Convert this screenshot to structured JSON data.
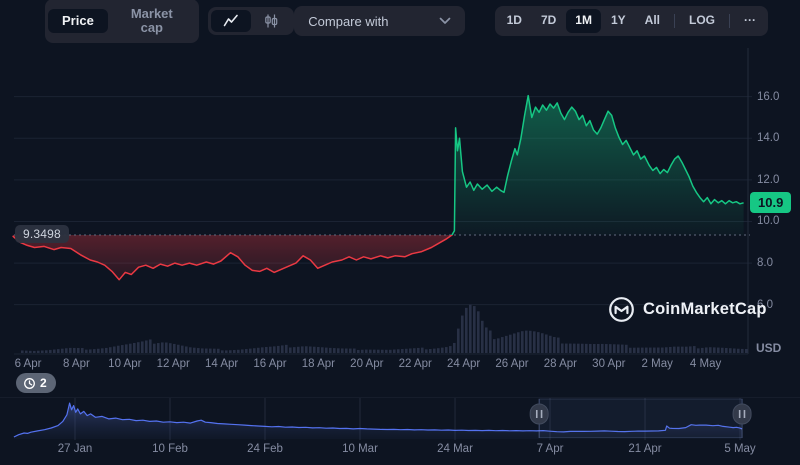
{
  "toolbar": {
    "price_label": "Price",
    "market_cap_label": "Market cap",
    "chart_types": [
      "line",
      "candlestick"
    ],
    "active_chart_type": "line",
    "compare_label": "Compare with",
    "ranges": [
      "1D",
      "7D",
      "1M",
      "1Y",
      "All"
    ],
    "active_range": "1M",
    "log_label": "LOG",
    "more_label": "···"
  },
  "chart": {
    "baseline_label": "9.3498",
    "current_price_label": "10.9",
    "usd_label": "USD"
  },
  "watermark": {
    "text": "CoinMarketCap"
  },
  "history_badge": {
    "count": "2"
  },
  "colors": {
    "up": "#16c784",
    "down": "#ea3943",
    "navigator_line": "#5472f0",
    "grid": "#1b2333",
    "volume": "#2b3349"
  },
  "chart_data": {
    "type": "line",
    "unit": "USD",
    "baseline": 9.3498,
    "current_price": 10.9,
    "ylim": [
      5.6,
      16.6
    ],
    "y_ticks": [
      {
        "label": "16.0",
        "value": 16.0
      },
      {
        "label": "14.0",
        "value": 14.0
      },
      {
        "label": "12.0",
        "value": 12.0
      },
      {
        "label": "10.0",
        "value": 10.0
      },
      {
        "label": "8.0",
        "value": 8.0
      },
      {
        "label": "6.0",
        "value": 6.0
      }
    ],
    "x_ticks": [
      {
        "label": "6 Apr",
        "day": 0
      },
      {
        "label": "8 Apr",
        "day": 2
      },
      {
        "label": "10 Apr",
        "day": 4
      },
      {
        "label": "12 Apr",
        "day": 6
      },
      {
        "label": "14 Apr",
        "day": 8
      },
      {
        "label": "16 Apr",
        "day": 10
      },
      {
        "label": "18 Apr",
        "day": 12
      },
      {
        "label": "20 Apr",
        "day": 14
      },
      {
        "label": "22 Apr",
        "day": 16
      },
      {
        "label": "24 Apr",
        "day": 18
      },
      {
        "label": "26 Apr",
        "day": 20
      },
      {
        "label": "28 Apr",
        "day": 22
      },
      {
        "label": "30 Apr",
        "day": 24
      },
      {
        "label": "2 May",
        "day": 26
      },
      {
        "label": "4 May",
        "day": 28
      }
    ],
    "points": [
      [
        -0.3,
        9.3
      ],
      [
        0,
        9.0
      ],
      [
        0.3,
        8.85
      ],
      [
        0.6,
        8.75
      ],
      [
        1,
        8.8
      ],
      [
        1.4,
        8.65
      ],
      [
        1.7,
        8.75
      ],
      [
        2.1,
        8.7
      ],
      [
        2.5,
        8.4
      ],
      [
        2.9,
        8.15
      ],
      [
        3.2,
        8.05
      ],
      [
        3.5,
        7.9
      ],
      [
        3.8,
        7.6
      ],
      [
        4.1,
        7.2
      ],
      [
        4.35,
        7.55
      ],
      [
        4.6,
        7.45
      ],
      [
        4.9,
        7.8
      ],
      [
        5.2,
        7.9
      ],
      [
        5.5,
        7.75
      ],
      [
        5.8,
        7.95
      ],
      [
        6.1,
        7.85
      ],
      [
        6.4,
        8.0
      ],
      [
        6.7,
        7.9
      ],
      [
        7.0,
        8.0
      ],
      [
        7.3,
        7.9
      ],
      [
        7.7,
        8.05
      ],
      [
        8.0,
        7.95
      ],
      [
        8.3,
        8.1
      ],
      [
        8.7,
        8.5
      ],
      [
        9.0,
        8.3
      ],
      [
        9.3,
        7.9
      ],
      [
        9.6,
        7.65
      ],
      [
        9.9,
        7.6
      ],
      [
        10.2,
        7.75
      ],
      [
        10.5,
        7.55
      ],
      [
        10.8,
        7.7
      ],
      [
        11.1,
        7.85
      ],
      [
        11.4,
        8.0
      ],
      [
        11.7,
        8.35
      ],
      [
        12.0,
        8.15
      ],
      [
        12.3,
        7.75
      ],
      [
        12.6,
        7.9
      ],
      [
        12.9,
        8.05
      ],
      [
        13.3,
        8.15
      ],
      [
        13.6,
        8.3
      ],
      [
        13.9,
        8.15
      ],
      [
        14.2,
        8.3
      ],
      [
        14.5,
        8.2
      ],
      [
        14.9,
        8.35
      ],
      [
        15.2,
        8.25
      ],
      [
        15.5,
        8.35
      ],
      [
        15.9,
        8.3
      ],
      [
        16.2,
        8.45
      ],
      [
        16.6,
        8.55
      ],
      [
        17.0,
        8.75
      ],
      [
        17.3,
        8.95
      ],
      [
        17.6,
        9.15
      ],
      [
        17.85,
        9.35
      ],
      [
        17.95,
        9.55
      ],
      [
        18.0,
        14.5
      ],
      [
        18.08,
        13.4
      ],
      [
        18.16,
        14.0
      ],
      [
        18.28,
        12.4
      ],
      [
        18.45,
        11.65
      ],
      [
        18.6,
        11.9
      ],
      [
        18.75,
        11.5
      ],
      [
        18.9,
        11.8
      ],
      [
        19.1,
        11.55
      ],
      [
        19.3,
        11.75
      ],
      [
        19.5,
        11.45
      ],
      [
        19.7,
        11.65
      ],
      [
        19.85,
        11.5
      ],
      [
        20.0,
        11.4
      ],
      [
        20.15,
        12.2
      ],
      [
        20.3,
        12.9
      ],
      [
        20.45,
        13.5
      ],
      [
        20.55,
        13.2
      ],
      [
        20.7,
        14.0
      ],
      [
        20.85,
        15.1
      ],
      [
        21.0,
        16.05
      ],
      [
        21.15,
        15.0
      ],
      [
        21.3,
        15.5
      ],
      [
        21.45,
        15.25
      ],
      [
        21.6,
        15.6
      ],
      [
        21.75,
        15.35
      ],
      [
        21.9,
        15.65
      ],
      [
        22.05,
        15.45
      ],
      [
        22.2,
        15.7
      ],
      [
        22.35,
        15.2
      ],
      [
        22.5,
        14.9
      ],
      [
        22.65,
        15.25
      ],
      [
        22.8,
        15.5
      ],
      [
        22.95,
        15.3
      ],
      [
        23.1,
        14.9
      ],
      [
        23.25,
        15.1
      ],
      [
        23.4,
        14.6
      ],
      [
        23.55,
        14.85
      ],
      [
        23.7,
        14.4
      ],
      [
        23.85,
        14.2
      ],
      [
        24.0,
        14.5
      ],
      [
        24.15,
        14.9
      ],
      [
        24.3,
        15.3
      ],
      [
        24.45,
        15.1
      ],
      [
        24.6,
        14.5
      ],
      [
        24.75,
        14.05
      ],
      [
        24.9,
        13.7
      ],
      [
        25.05,
        13.9
      ],
      [
        25.2,
        13.55
      ],
      [
        25.35,
        13.2
      ],
      [
        25.5,
        13.4
      ],
      [
        25.65,
        13.0
      ],
      [
        25.8,
        13.15
      ],
      [
        26.0,
        12.7
      ],
      [
        26.15,
        12.45
      ],
      [
        26.3,
        12.6
      ],
      [
        26.45,
        12.3
      ],
      [
        26.6,
        12.5
      ],
      [
        26.75,
        12.35
      ],
      [
        26.9,
        12.7
      ],
      [
        27.05,
        13.0
      ],
      [
        27.2,
        13.15
      ],
      [
        27.35,
        12.85
      ],
      [
        27.5,
        12.5
      ],
      [
        27.65,
        12.15
      ],
      [
        27.8,
        11.7
      ],
      [
        27.95,
        11.4
      ],
      [
        28.1,
        11.15
      ],
      [
        28.25,
        10.95
      ],
      [
        28.4,
        11.15
      ],
      [
        28.55,
        10.85
      ],
      [
        28.7,
        11.05
      ],
      [
        28.85,
        10.9
      ],
      [
        29.0,
        11.0
      ],
      [
        29.15,
        10.85
      ],
      [
        29.3,
        11.0
      ],
      [
        29.45,
        10.9
      ],
      [
        29.6,
        10.95
      ],
      [
        29.75,
        10.85
      ],
      [
        29.9,
        10.9
      ]
    ],
    "volume_relative": [
      [
        0,
        0.07
      ],
      [
        0.5,
        0.05
      ],
      [
        1,
        0.06
      ],
      [
        1.5,
        0.08
      ],
      [
        2,
        0.1
      ],
      [
        2.5,
        0.09
      ],
      [
        3,
        0.1
      ],
      [
        3.5,
        0.12
      ],
      [
        4,
        0.16
      ],
      [
        4.5,
        0.19
      ],
      [
        5,
        0.22
      ],
      [
        5.5,
        0.26
      ],
      [
        5.9,
        0.28
      ],
      [
        6.3,
        0.22
      ],
      [
        6.7,
        0.16
      ],
      [
        7,
        0.12
      ],
      [
        7.5,
        0.09
      ],
      [
        8,
        0.08
      ],
      [
        8.5,
        0.07
      ],
      [
        9,
        0.08
      ],
      [
        9.5,
        0.1
      ],
      [
        10,
        0.12
      ],
      [
        10.5,
        0.13
      ],
      [
        11,
        0.15
      ],
      [
        11.7,
        0.17
      ],
      [
        12.2,
        0.14
      ],
      [
        12.7,
        0.11
      ],
      [
        13.2,
        0.09
      ],
      [
        13.7,
        0.08
      ],
      [
        14.2,
        0.09
      ],
      [
        14.7,
        0.08
      ],
      [
        15.2,
        0.07
      ],
      [
        15.7,
        0.08
      ],
      [
        16.2,
        0.09
      ],
      [
        16.7,
        0.1
      ],
      [
        17.2,
        0.12
      ],
      [
        17.7,
        0.15
      ],
      [
        17.95,
        0.25
      ],
      [
        18.1,
        0.65
      ],
      [
        18.3,
        0.9
      ],
      [
        18.5,
        1.0
      ],
      [
        18.7,
        0.95
      ],
      [
        18.9,
        0.8
      ],
      [
        19.1,
        0.55
      ],
      [
        19.3,
        0.42
      ],
      [
        19.6,
        0.38
      ],
      [
        19.9,
        0.42
      ],
      [
        20.2,
        0.45
      ],
      [
        20.5,
        0.48
      ],
      [
        20.8,
        0.5
      ],
      [
        21.1,
        0.47
      ],
      [
        21.4,
        0.42
      ],
      [
        21.7,
        0.36
      ],
      [
        22,
        0.3
      ],
      [
        22.4,
        0.26
      ],
      [
        22.8,
        0.24
      ],
      [
        23.2,
        0.22
      ],
      [
        23.6,
        0.2
      ],
      [
        24,
        0.19
      ],
      [
        24.5,
        0.17
      ],
      [
        25,
        0.15
      ],
      [
        25.5,
        0.14
      ],
      [
        26,
        0.13
      ],
      [
        26.5,
        0.12
      ],
      [
        27,
        0.13
      ],
      [
        27.5,
        0.12
      ],
      [
        28,
        0.13
      ],
      [
        28.4,
        0.15
      ],
      [
        28.8,
        0.13
      ],
      [
        29.2,
        0.11
      ],
      [
        29.6,
        0.09
      ],
      [
        29.9,
        0.08
      ]
    ],
    "navigator": {
      "ticks": [
        {
          "label": "27 Jan",
          "day": 9
        },
        {
          "label": "10 Feb",
          "day": 23
        },
        {
          "label": "24 Feb",
          "day": 37
        },
        {
          "label": "10 Mar",
          "day": 51
        },
        {
          "label": "24 Mar",
          "day": 65
        },
        {
          "label": "7 Apr",
          "day": 79
        },
        {
          "label": "21 Apr",
          "day": 93
        },
        {
          "label": "5 May",
          "day": 107
        }
      ],
      "selected_window_days": [
        77.4,
        107.3
      ],
      "points": [
        [
          0,
          1.2
        ],
        [
          0.7,
          4
        ],
        [
          1.5,
          6
        ],
        [
          2,
          5.5
        ],
        [
          2.5,
          7
        ],
        [
          3.5,
          8.5
        ],
        [
          4.5,
          10
        ],
        [
          5.5,
          12
        ],
        [
          6.5,
          15
        ],
        [
          7.2,
          20
        ],
        [
          7.8,
          28
        ],
        [
          8.2,
          42
        ],
        [
          8.5,
          34
        ],
        [
          8.8,
          39
        ],
        [
          9.1,
          31
        ],
        [
          9.4,
          35
        ],
        [
          9.8,
          29
        ],
        [
          10.3,
          32
        ],
        [
          10.8,
          27
        ],
        [
          11.3,
          29
        ],
        [
          12,
          25
        ],
        [
          13,
          26
        ],
        [
          14,
          23
        ],
        [
          15,
          24
        ],
        [
          16,
          22
        ],
        [
          17,
          22.5
        ],
        [
          18,
          21
        ],
        [
          19,
          21.5
        ],
        [
          20,
          20
        ],
        [
          21,
          20.5
        ],
        [
          22,
          19
        ],
        [
          23,
          19.5
        ],
        [
          24,
          18.5
        ],
        [
          25,
          19
        ],
        [
          26,
          18
        ],
        [
          27,
          20.5
        ],
        [
          27.6,
          21.5
        ],
        [
          28.2,
          19
        ],
        [
          29,
          18.5
        ],
        [
          30,
          17.5
        ],
        [
          31,
          17
        ],
        [
          32,
          16.5
        ],
        [
          33,
          16
        ],
        [
          34,
          15.5
        ],
        [
          35,
          15
        ],
        [
          36,
          14.5
        ],
        [
          37,
          14
        ],
        [
          38,
          13.5
        ],
        [
          39,
          13.8
        ],
        [
          40,
          13
        ],
        [
          41,
          13.3
        ],
        [
          42,
          12.6
        ],
        [
          43,
          12.9
        ],
        [
          44,
          12.2
        ],
        [
          45,
          12.4
        ],
        [
          46,
          11.8
        ],
        [
          47,
          12
        ],
        [
          48,
          11.4
        ],
        [
          49,
          11.6
        ],
        [
          50,
          11
        ],
        [
          51,
          11.5
        ],
        [
          52,
          11
        ],
        [
          53,
          10.7
        ],
        [
          54,
          10.4
        ],
        [
          55,
          10.2
        ],
        [
          56,
          10.4
        ],
        [
          57,
          10
        ],
        [
          58,
          10.2
        ],
        [
          59,
          9.8
        ],
        [
          60,
          10
        ],
        [
          61,
          9.6
        ],
        [
          62,
          9.8
        ],
        [
          63,
          9.4
        ],
        [
          64,
          9.6
        ],
        [
          65,
          9.2
        ],
        [
          66,
          9.4
        ],
        [
          67,
          9
        ],
        [
          68,
          9.2
        ],
        [
          69,
          8.9
        ],
        [
          70,
          9.1
        ],
        [
          71,
          8.8
        ],
        [
          72,
          9
        ],
        [
          73,
          8.7
        ],
        [
          74,
          8.9
        ],
        [
          75,
          8.6
        ],
        [
          76,
          8.8
        ],
        [
          77,
          8.5
        ],
        [
          78,
          8.9
        ],
        [
          79,
          8.2
        ],
        [
          80,
          7.6
        ],
        [
          81,
          7.3
        ],
        [
          82,
          7.9
        ],
        [
          83,
          8
        ],
        [
          84,
          7.9
        ],
        [
          85,
          8.1
        ],
        [
          86,
          8.3
        ],
        [
          87,
          8.6
        ],
        [
          88,
          8.2
        ],
        [
          89,
          7.8
        ],
        [
          90,
          7.7
        ],
        [
          91,
          8.1
        ],
        [
          92,
          8.3
        ],
        [
          93,
          8.3
        ],
        [
          94,
          8.4
        ],
        [
          95,
          8.5
        ],
        [
          96,
          9.3
        ],
        [
          96.2,
          14.5
        ],
        [
          96.6,
          11.8
        ],
        [
          97,
          11.6
        ],
        [
          98,
          11.5
        ],
        [
          99,
          12.5
        ],
        [
          99.8,
          16
        ],
        [
          100.5,
          15.3
        ],
        [
          101,
          15.5
        ],
        [
          102,
          15.5
        ],
        [
          103,
          14.8
        ],
        [
          103.8,
          15.3
        ],
        [
          104.5,
          14
        ],
        [
          105.5,
          13
        ],
        [
          106,
          12.5
        ],
        [
          106.5,
          12.9
        ],
        [
          107,
          11.9
        ],
        [
          107.3,
          11
        ]
      ]
    }
  }
}
